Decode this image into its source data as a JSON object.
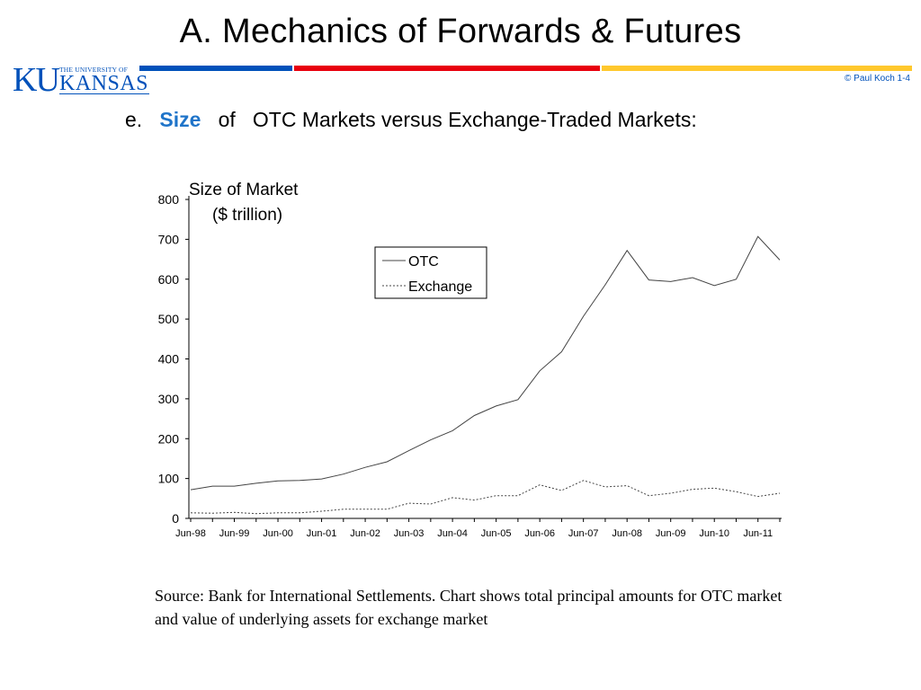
{
  "slide": {
    "title": "A.  Mechanics of Forwards & Futures",
    "copyright": "© Paul Koch 1-4"
  },
  "logo": {
    "mark": "KU",
    "university_line": "THE UNIVERSITY OF",
    "name": "KANSAS",
    "colors": {
      "blue": "#0051ba",
      "red": "#e8000d",
      "yellow": "#ffc82d"
    }
  },
  "subtitle": {
    "letter": "e.",
    "highlight": "Size",
    "of": "of",
    "rest": "OTC  Markets  versus  Exchange-Traded Markets:",
    "highlight_color": "#1f74c9"
  },
  "chart_data": {
    "type": "line",
    "title": "Size of Market",
    "subtitle": "($ trillion)",
    "ylim": [
      0,
      800
    ],
    "yticks": [
      0,
      100,
      200,
      300,
      400,
      500,
      600,
      700,
      800
    ],
    "xtick_labels": [
      "Jun-98",
      "Jun-99",
      "Jun-00",
      "Jun-01",
      "Jun-02",
      "Jun-03",
      "Jun-04",
      "Jun-05",
      "Jun-06",
      "Jun-07",
      "Jun-08",
      "Jun-09",
      "Jun-10",
      "Jun-11"
    ],
    "x": [
      "Jun-98",
      "Dec-98",
      "Jun-99",
      "Dec-99",
      "Jun-00",
      "Dec-00",
      "Jun-01",
      "Dec-01",
      "Jun-02",
      "Dec-02",
      "Jun-03",
      "Dec-03",
      "Jun-04",
      "Dec-04",
      "Jun-05",
      "Dec-05",
      "Jun-06",
      "Dec-06",
      "Jun-07",
      "Dec-07",
      "Jun-08",
      "Dec-08",
      "Jun-09",
      "Dec-09",
      "Jun-10",
      "Dec-10",
      "Jun-11",
      "Dec-11"
    ],
    "grid": false,
    "legend_position": "top-center",
    "series": [
      {
        "name": "OTC",
        "style": "solid",
        "values": [
          72,
          81,
          81,
          88,
          94,
          95,
          99,
          111,
          128,
          142,
          170,
          197,
          220,
          258,
          282,
          298,
          370,
          418,
          507,
          586,
          672,
          598,
          594,
          604,
          584,
          600,
          707,
          648
        ]
      },
      {
        "name": "Exchange",
        "style": "dotted",
        "values": [
          14,
          13,
          15,
          12,
          14,
          14,
          18,
          23,
          23,
          23,
          38,
          36,
          52,
          46,
          57,
          57,
          84,
          70,
          95,
          79,
          82,
          57,
          63,
          73,
          76,
          67,
          55,
          63
        ]
      }
    ]
  },
  "source": {
    "text": "Source:  Bank for International Settlements. Chart shows total principal amounts for OTC market and value of underlying assets for exchange market"
  }
}
